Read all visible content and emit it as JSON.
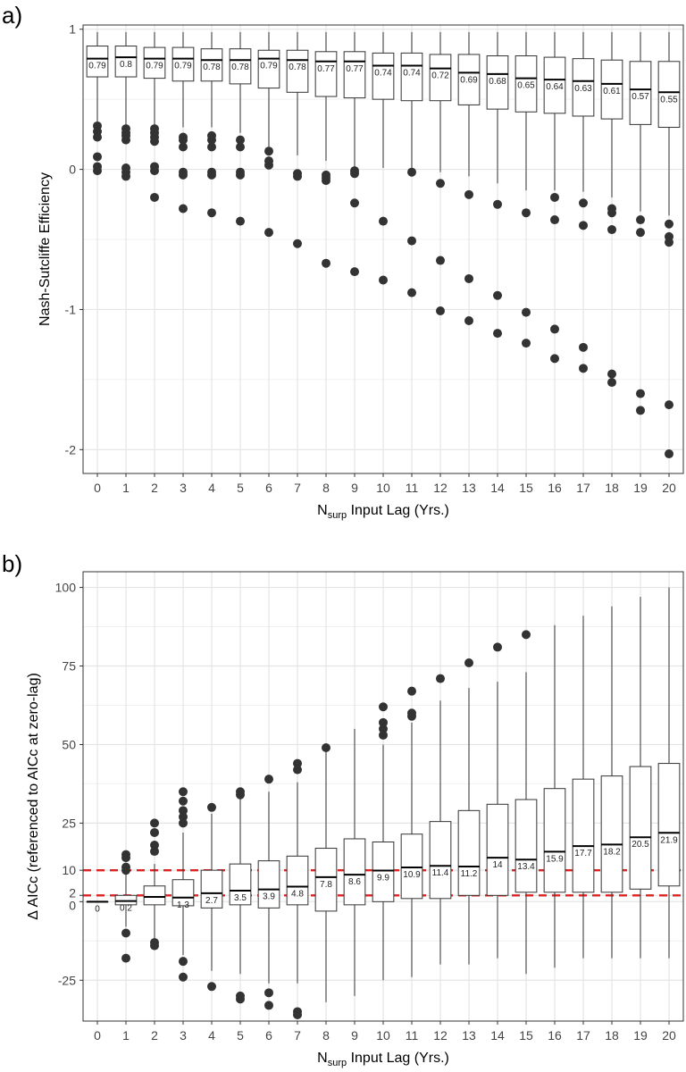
{
  "chart_data": [
    {
      "panel_label": "a)",
      "type": "boxplot",
      "ylabel": "Nash-Sutcliffe Efficiency",
      "xlabel": {
        "prefix": "N",
        "subscript": "surp",
        "suffix": " Input Lag (Yrs.)"
      },
      "ylim": [
        -2.17,
        1.03
      ],
      "yticks": [
        1,
        0,
        -1,
        -2
      ],
      "ytick_labels": [
        "1",
        "0",
        "-1",
        "-2"
      ],
      "grid": true,
      "categories": [
        "0",
        "1",
        "2",
        "3",
        "4",
        "5",
        "6",
        "7",
        "8",
        "9",
        "10",
        "11",
        "12",
        "13",
        "14",
        "15",
        "16",
        "17",
        "18",
        "19",
        "20"
      ],
      "boxes": [
        {
          "lag": "0",
          "whisker_low": 0.33,
          "q1": 0.66,
          "median": 0.79,
          "q3": 0.88,
          "whisker_high": 0.98,
          "outliers": [
            0.31,
            0.27,
            0.23,
            0.09,
            0.02,
            -0.01
          ],
          "median_label": "0.79"
        },
        {
          "lag": "1",
          "whisker_low": 0.32,
          "q1": 0.66,
          "median": 0.8,
          "q3": 0.88,
          "whisker_high": 0.98,
          "outliers": [
            0.29,
            0.26,
            0.24,
            0.21,
            0.01,
            -0.02,
            -0.05
          ],
          "median_label": "0.8"
        },
        {
          "lag": "2",
          "whisker_low": 0.32,
          "q1": 0.65,
          "median": 0.79,
          "q3": 0.87,
          "whisker_high": 0.98,
          "outliers": [
            0.29,
            0.26,
            0.23,
            0.2,
            0.02,
            -0.01,
            -0.2
          ],
          "median_label": "0.79"
        },
        {
          "lag": "3",
          "whisker_low": 0.3,
          "q1": 0.63,
          "median": 0.79,
          "q3": 0.87,
          "whisker_high": 0.98,
          "outliers": [
            0.23,
            0.21,
            0.16,
            -0.02,
            -0.04,
            -0.28
          ],
          "median_label": "0.79"
        },
        {
          "lag": "4",
          "whisker_low": 0.3,
          "q1": 0.63,
          "median": 0.78,
          "q3": 0.86,
          "whisker_high": 0.98,
          "outliers": [
            0.24,
            0.21,
            0.16,
            -0.02,
            -0.04,
            -0.31
          ],
          "median_label": "0.78"
        },
        {
          "lag": "5",
          "whisker_low": 0.26,
          "q1": 0.61,
          "median": 0.78,
          "q3": 0.86,
          "whisker_high": 0.98,
          "outliers": [
            0.21,
            0.16,
            -0.02,
            -0.04,
            -0.37
          ],
          "median_label": "0.78"
        },
        {
          "lag": "6",
          "whisker_low": 0.16,
          "q1": 0.58,
          "median": 0.79,
          "q3": 0.85,
          "whisker_high": 0.98,
          "outliers": [
            0.13,
            0.06,
            0.03,
            -0.45
          ],
          "median_label": "0.79"
        },
        {
          "lag": "7",
          "whisker_low": 0.1,
          "q1": 0.55,
          "median": 0.78,
          "q3": 0.85,
          "whisker_high": 0.98,
          "outliers": [
            -0.03,
            -0.05,
            -0.53
          ],
          "median_label": "0.78"
        },
        {
          "lag": "8",
          "whisker_low": 0.06,
          "q1": 0.52,
          "median": 0.77,
          "q3": 0.84,
          "whisker_high": 0.98,
          "outliers": [
            -0.04,
            -0.06,
            -0.08,
            -0.67
          ],
          "median_label": "0.77"
        },
        {
          "lag": "9",
          "whisker_low": 0.02,
          "q1": 0.51,
          "median": 0.77,
          "q3": 0.84,
          "whisker_high": 0.98,
          "outliers": [
            -0.01,
            -0.03,
            -0.24,
            -0.73
          ],
          "median_label": "0.77"
        },
        {
          "lag": "10",
          "whisker_low": 0.01,
          "q1": 0.5,
          "median": 0.74,
          "q3": 0.83,
          "whisker_high": 0.98,
          "outliers": [
            -0.37,
            -0.79
          ],
          "median_label": "0.74"
        },
        {
          "lag": "11",
          "whisker_low": 0.0,
          "q1": 0.49,
          "median": 0.74,
          "q3": 0.83,
          "whisker_high": 0.98,
          "outliers": [
            -0.02,
            -0.51,
            -0.88
          ],
          "median_label": "0.74"
        },
        {
          "lag": "12",
          "whisker_low": -0.02,
          "q1": 0.49,
          "median": 0.72,
          "q3": 0.82,
          "whisker_high": 0.98,
          "outliers": [
            -0.1,
            -0.65,
            -1.01
          ],
          "median_label": "0.72"
        },
        {
          "lag": "13",
          "whisker_low": -0.05,
          "q1": 0.46,
          "median": 0.69,
          "q3": 0.82,
          "whisker_high": 0.98,
          "outliers": [
            -0.18,
            -0.78,
            -1.08
          ],
          "median_label": "0.69"
        },
        {
          "lag": "14",
          "whisker_low": -0.1,
          "q1": 0.43,
          "median": 0.68,
          "q3": 0.81,
          "whisker_high": 0.98,
          "outliers": [
            -0.25,
            -0.9,
            -1.17
          ],
          "median_label": "0.68"
        },
        {
          "lag": "15",
          "whisker_low": -0.15,
          "q1": 0.41,
          "median": 0.65,
          "q3": 0.81,
          "whisker_high": 0.98,
          "outliers": [
            -0.31,
            -1.02,
            -1.24
          ],
          "median_label": "0.65"
        },
        {
          "lag": "16",
          "whisker_low": -0.15,
          "q1": 0.4,
          "median": 0.64,
          "q3": 0.8,
          "whisker_high": 0.98,
          "outliers": [
            -0.2,
            -0.36,
            -1.14,
            -1.35
          ],
          "median_label": "0.64"
        },
        {
          "lag": "17",
          "whisker_low": -0.16,
          "q1": 0.38,
          "median": 0.63,
          "q3": 0.79,
          "whisker_high": 0.98,
          "outliers": [
            -0.24,
            -0.4,
            -1.27,
            -1.42
          ],
          "median_label": "0.63"
        },
        {
          "lag": "18",
          "whisker_low": -0.2,
          "q1": 0.36,
          "median": 0.61,
          "q3": 0.78,
          "whisker_high": 0.98,
          "outliers": [
            -0.28,
            -0.31,
            -0.43,
            -1.46,
            -1.52
          ],
          "median_label": "0.61"
        },
        {
          "lag": "19",
          "whisker_low": -0.3,
          "q1": 0.32,
          "median": 0.57,
          "q3": 0.77,
          "whisker_high": 0.98,
          "outliers": [
            -0.36,
            -0.45,
            -1.6,
            -1.72
          ],
          "median_label": "0.57"
        },
        {
          "lag": "20",
          "whisker_low": -0.33,
          "q1": 0.3,
          "median": 0.55,
          "q3": 0.77,
          "whisker_high": 0.98,
          "outliers": [
            -0.39,
            -0.48,
            -0.52,
            -1.68,
            -2.03
          ],
          "median_label": "0.55"
        }
      ]
    },
    {
      "panel_label": "b)",
      "type": "boxplot",
      "ylabel": "Δ AICc (referenced to AICc at zero-lag)",
      "xlabel": {
        "prefix": "N",
        "subscript": "surp",
        "suffix": " Input Lag (Yrs.)"
      },
      "ylim": [
        -38,
        105
      ],
      "yticks": [
        100,
        75,
        50,
        25,
        10,
        2,
        0,
        -25
      ],
      "ytick_labels": [
        "100",
        "75",
        "50",
        "25",
        "10",
        "2",
        "0",
        "-25"
      ],
      "reference_lines": [
        {
          "y": 10,
          "color": "#dd2222",
          "style": "dashed"
        },
        {
          "y": 2,
          "color": "#dd2222",
          "style": "dashed"
        }
      ],
      "grid": true,
      "categories": [
        "0",
        "1",
        "2",
        "3",
        "4",
        "5",
        "6",
        "7",
        "8",
        "9",
        "10",
        "11",
        "12",
        "13",
        "14",
        "15",
        "16",
        "17",
        "18",
        "19",
        "20"
      ],
      "boxes": [
        {
          "lag": "0",
          "whisker_low": 0,
          "q1": 0,
          "median": 0,
          "q3": 0,
          "whisker_high": 0,
          "outliers": [],
          "median_label": "0"
        },
        {
          "lag": "1",
          "whisker_low": -8,
          "q1": -1,
          "median": 0.2,
          "q3": 2,
          "whisker_high": 9,
          "outliers": [
            15,
            14,
            11,
            10,
            -10,
            -18
          ],
          "median_label": "0.2"
        },
        {
          "lag": "2",
          "whisker_low": -12,
          "q1": -1,
          "median": 1.5,
          "q3": 5,
          "whisker_high": 12,
          "outliers": [
            25,
            22,
            18,
            16,
            -13,
            -14
          ],
          "median_label": ""
        },
        {
          "lag": "3",
          "whisker_low": -17,
          "q1": -1.3,
          "median": 1.3,
          "q3": 7,
          "whisker_high": 22,
          "outliers": [
            35,
            32,
            29,
            27,
            25,
            -19,
            -24
          ],
          "median_label": "1.3"
        },
        {
          "lag": "4",
          "whisker_low": -22,
          "q1": -2,
          "median": 2.7,
          "q3": 10,
          "whisker_high": 28,
          "outliers": [
            30,
            -27
          ],
          "median_label": "2.7"
        },
        {
          "lag": "5",
          "whisker_low": -23,
          "q1": -1,
          "median": 3.5,
          "q3": 12,
          "whisker_high": 33,
          "outliers": [
            35,
            34,
            -30,
            -31
          ],
          "median_label": "3.5"
        },
        {
          "lag": "6",
          "whisker_low": -26,
          "q1": -2,
          "median": 3.9,
          "q3": 13,
          "whisker_high": 35,
          "outliers": [
            39,
            -29,
            -33
          ],
          "median_label": "3.9"
        },
        {
          "lag": "7",
          "whisker_low": -26,
          "q1": -1,
          "median": 4.8,
          "q3": 14.5,
          "whisker_high": 38,
          "outliers": [
            44,
            42,
            -35,
            -36
          ],
          "median_label": "4.8"
        },
        {
          "lag": "8",
          "whisker_low": -32,
          "q1": -3,
          "median": 7.8,
          "q3": 17,
          "whisker_high": 49,
          "outliers": [
            49
          ],
          "median_label": "7.8"
        },
        {
          "lag": "9",
          "whisker_low": -30,
          "q1": -1,
          "median": 8.6,
          "q3": 20,
          "whisker_high": 55,
          "outliers": [],
          "median_label": "8.6"
        },
        {
          "lag": "10",
          "whisker_low": -25,
          "q1": 0,
          "median": 9.9,
          "q3": 19,
          "whisker_high": 50,
          "outliers": [
            62,
            57,
            55,
            53
          ],
          "median_label": "9.9"
        },
        {
          "lag": "11",
          "whisker_low": -24,
          "q1": 1,
          "median": 10.9,
          "q3": 21.5,
          "whisker_high": 57,
          "outliers": [
            67,
            60,
            59
          ],
          "median_label": "10.9"
        },
        {
          "lag": "12",
          "whisker_low": -20,
          "q1": 1,
          "median": 11.4,
          "q3": 25.5,
          "whisker_high": 64,
          "outliers": [
            71
          ],
          "median_label": "11.4"
        },
        {
          "lag": "13",
          "whisker_low": -20,
          "q1": 2,
          "median": 11.2,
          "q3": 29,
          "whisker_high": 68,
          "outliers": [
            76
          ],
          "median_label": "11.2"
        },
        {
          "lag": "14",
          "whisker_low": -18,
          "q1": 2,
          "median": 14,
          "q3": 31,
          "whisker_high": 70,
          "outliers": [
            81
          ],
          "median_label": "14"
        },
        {
          "lag": "15",
          "whisker_low": -23,
          "q1": 3,
          "median": 13.4,
          "q3": 32.5,
          "whisker_high": 73,
          "outliers": [
            85
          ],
          "median_label": "13.4"
        },
        {
          "lag": "16",
          "whisker_low": -21,
          "q1": 3,
          "median": 15.9,
          "q3": 36,
          "whisker_high": 88,
          "outliers": [],
          "median_label": "15.9"
        },
        {
          "lag": "17",
          "whisker_low": -18,
          "q1": 3,
          "median": 17.7,
          "q3": 39,
          "whisker_high": 91,
          "outliers": [],
          "median_label": "17.7"
        },
        {
          "lag": "18",
          "whisker_low": -18,
          "q1": 3,
          "median": 18.2,
          "q3": 40,
          "whisker_high": 94,
          "outliers": [],
          "median_label": "18.2"
        },
        {
          "lag": "19",
          "whisker_low": -18,
          "q1": 4,
          "median": 20.5,
          "q3": 43,
          "whisker_high": 97,
          "outliers": [],
          "median_label": "20.5"
        },
        {
          "lag": "20",
          "whisker_low": -18,
          "q1": 5,
          "median": 21.9,
          "q3": 44,
          "whisker_high": 100,
          "outliers": [],
          "median_label": "21.9"
        }
      ]
    }
  ]
}
